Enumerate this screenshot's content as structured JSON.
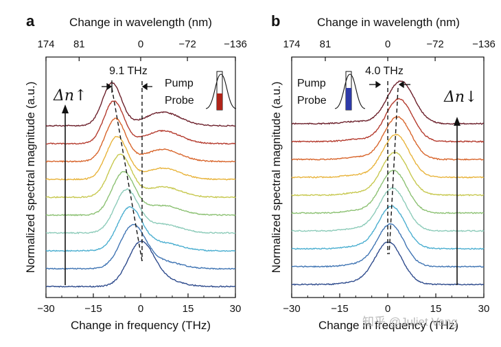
{
  "watermark": "知乎 @Juliet Vang",
  "colors": [
    "#6b1f2a",
    "#b43a2d",
    "#d8652b",
    "#e8b33a",
    "#c7c84f",
    "#8cc173",
    "#8ccbb9",
    "#4aaed0",
    "#3f74b3",
    "#2d4a8c"
  ],
  "chart_data": [
    {
      "panel": "a",
      "type": "line",
      "top_axis_title": "Change in wavelength (nm)",
      "top_ticks": [
        "174",
        "81",
        "0",
        "−72",
        "−136"
      ],
      "xlabel": "Change in frequency (THz)",
      "ylabel": "Normalized spectral magnitude (a.u.)",
      "x_ticks": [
        "−30",
        "−15",
        "0",
        "15",
        "30"
      ],
      "xlim": [
        -30,
        30
      ],
      "shift_label": "9.1 THz",
      "legend": [
        "Pump",
        "Probe"
      ],
      "arrow_label_symbol": "Δn",
      "arrow_label_dir": "↑",
      "series_peaks": [
        -9.1,
        -8.5,
        -8.0,
        -7.5,
        -6.5,
        -5.5,
        -4.5,
        -3.5,
        -2.5,
        0.0
      ],
      "secondary_peak": 7
    },
    {
      "panel": "b",
      "type": "line",
      "top_axis_title": "Change in wavelength (nm)",
      "top_ticks": [
        "174",
        "81",
        "0",
        "−72",
        "−136"
      ],
      "xlabel": "Change in frequency (THz)",
      "ylabel": "Normalized spectral magnitude (a.u.)",
      "x_ticks": [
        "−30",
        "−15",
        "0",
        "15",
        "30"
      ],
      "xlim": [
        -30,
        30
      ],
      "shift_label": "4.0 THz",
      "legend": [
        "Pump",
        "Probe"
      ],
      "arrow_label_symbol": "Δn",
      "arrow_label_dir": "↓",
      "series_peaks": [
        4.0,
        3.5,
        3.0,
        2.5,
        2.2,
        1.8,
        1.5,
        1.2,
        0.8,
        0.2
      ]
    }
  ]
}
